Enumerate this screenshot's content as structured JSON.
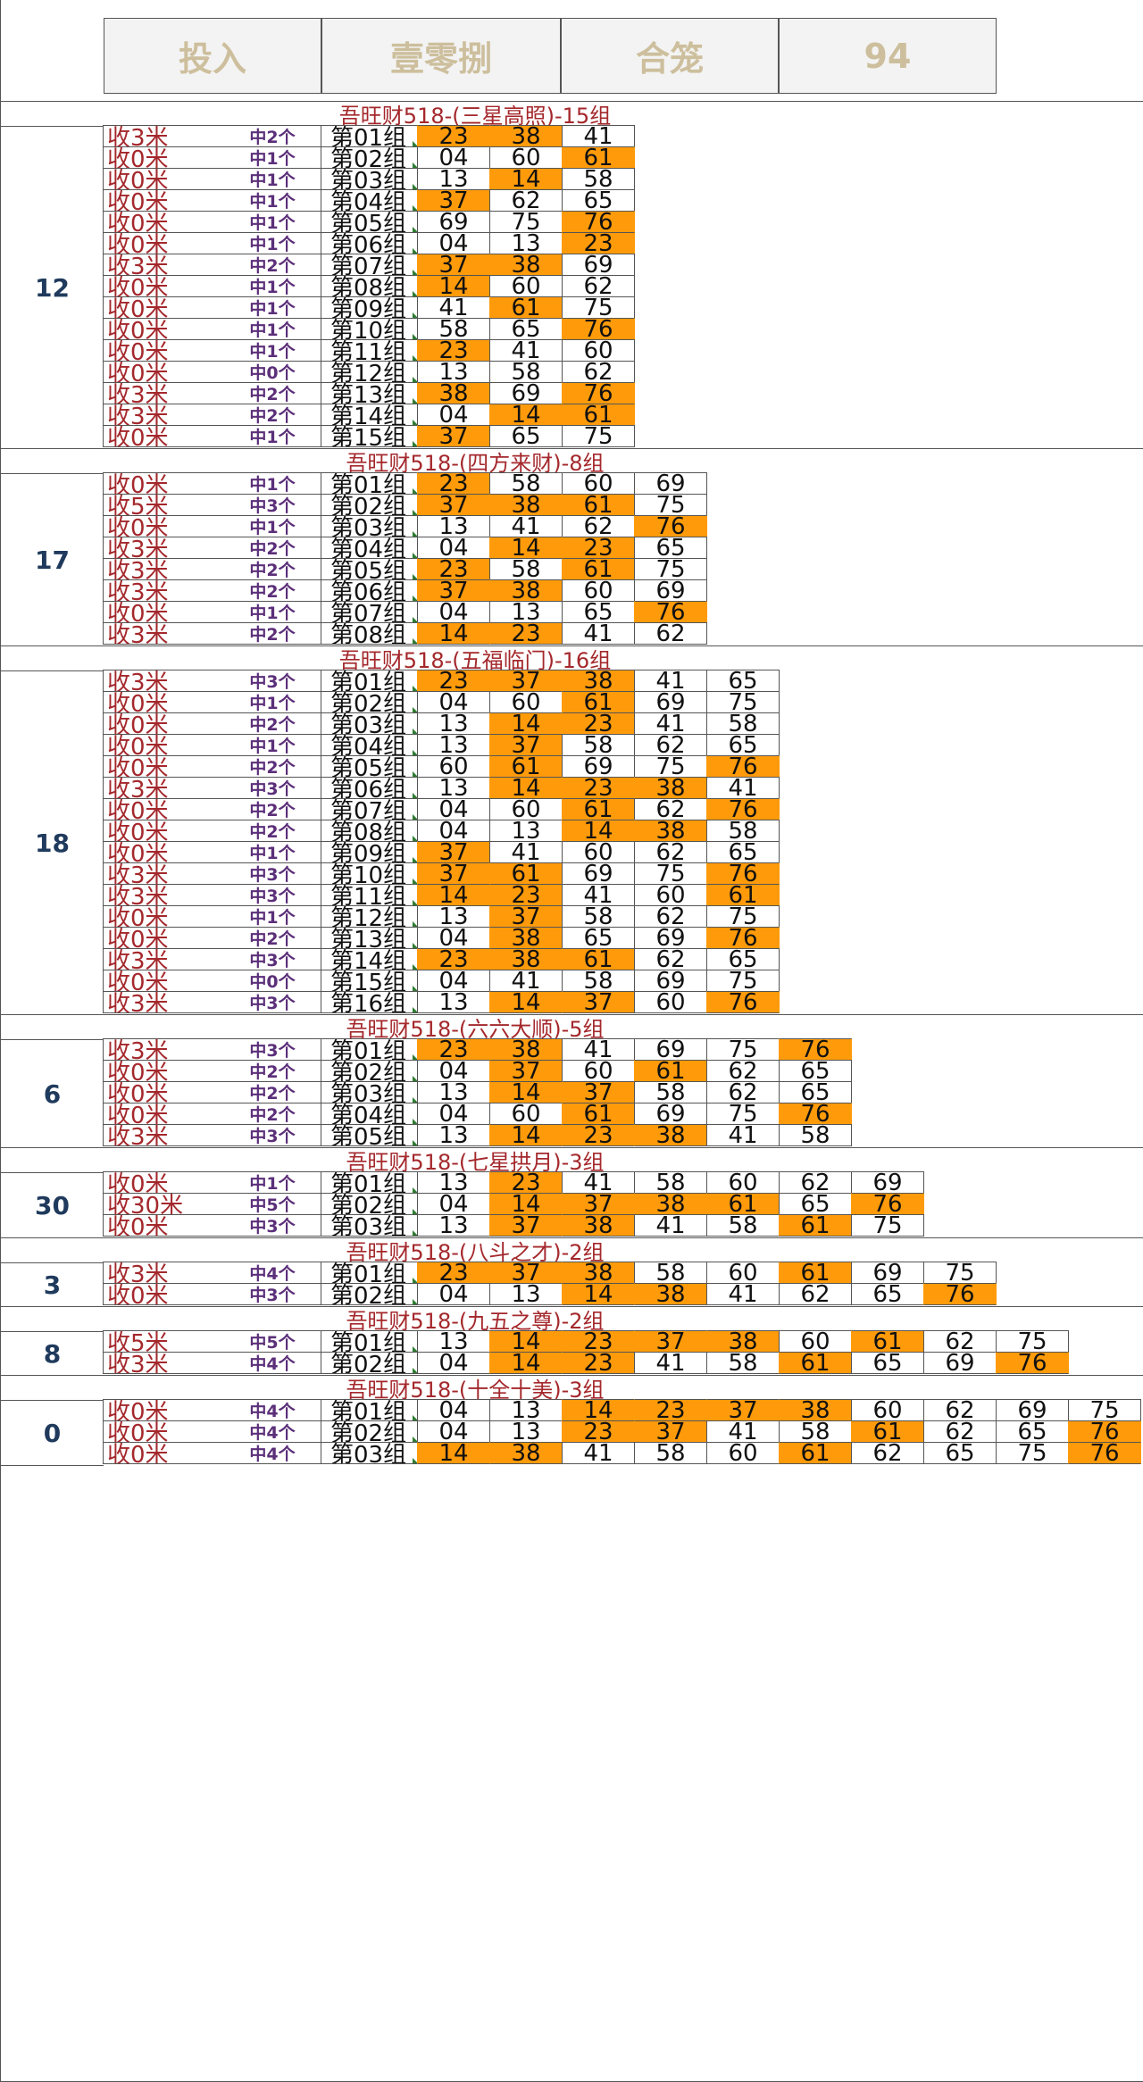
{
  "header": [
    "投入",
    "壹零捌",
    "合笼",
    "94"
  ],
  "sections": [
    {
      "title": "吾旺财518-(三星高照)-15组",
      "left_value": "12",
      "rows": [
        {
          "shou": "收3米",
          "zhong": "中2个",
          "group": "第01组",
          "nums": [
            "23",
            "38",
            "41"
          ],
          "hits": [
            true,
            true,
            false
          ]
        },
        {
          "shou": "收0米",
          "zhong": "中1个",
          "group": "第02组",
          "nums": [
            "04",
            "60",
            "61"
          ],
          "hits": [
            false,
            false,
            true
          ]
        },
        {
          "shou": "收0米",
          "zhong": "中1个",
          "group": "第03组",
          "nums": [
            "13",
            "14",
            "58"
          ],
          "hits": [
            false,
            true,
            false
          ]
        },
        {
          "shou": "收0米",
          "zhong": "中1个",
          "group": "第04组",
          "nums": [
            "37",
            "62",
            "65"
          ],
          "hits": [
            true,
            false,
            false
          ]
        },
        {
          "shou": "收0米",
          "zhong": "中1个",
          "group": "第05组",
          "nums": [
            "69",
            "75",
            "76"
          ],
          "hits": [
            false,
            false,
            true
          ]
        },
        {
          "shou": "收0米",
          "zhong": "中1个",
          "group": "第06组",
          "nums": [
            "04",
            "13",
            "23"
          ],
          "hits": [
            false,
            false,
            true
          ]
        },
        {
          "shou": "收3米",
          "zhong": "中2个",
          "group": "第07组",
          "nums": [
            "37",
            "38",
            "69"
          ],
          "hits": [
            true,
            true,
            false
          ]
        },
        {
          "shou": "收0米",
          "zhong": "中1个",
          "group": "第08组",
          "nums": [
            "14",
            "60",
            "62"
          ],
          "hits": [
            true,
            false,
            false
          ]
        },
        {
          "shou": "收0米",
          "zhong": "中1个",
          "group": "第09组",
          "nums": [
            "41",
            "61",
            "75"
          ],
          "hits": [
            false,
            true,
            false
          ]
        },
        {
          "shou": "收0米",
          "zhong": "中1个",
          "group": "第10组",
          "nums": [
            "58",
            "65",
            "76"
          ],
          "hits": [
            false,
            false,
            true
          ]
        },
        {
          "shou": "收0米",
          "zhong": "中1个",
          "group": "第11组",
          "nums": [
            "23",
            "41",
            "60"
          ],
          "hits": [
            true,
            false,
            false
          ]
        },
        {
          "shou": "收0米",
          "zhong": "中0个",
          "group": "第12组",
          "nums": [
            "13",
            "58",
            "62"
          ],
          "hits": [
            false,
            false,
            false
          ]
        },
        {
          "shou": "收3米",
          "zhong": "中2个",
          "group": "第13组",
          "nums": [
            "38",
            "69",
            "76"
          ],
          "hits": [
            true,
            false,
            true
          ]
        },
        {
          "shou": "收3米",
          "zhong": "中2个",
          "group": "第14组",
          "nums": [
            "04",
            "14",
            "61"
          ],
          "hits": [
            false,
            true,
            true
          ]
        },
        {
          "shou": "收0米",
          "zhong": "中1个",
          "group": "第15组",
          "nums": [
            "37",
            "65",
            "75"
          ],
          "hits": [
            true,
            false,
            false
          ]
        }
      ]
    },
    {
      "title": "吾旺财518-(四方来财)-8组",
      "left_value": "17",
      "rows": [
        {
          "shou": "收0米",
          "zhong": "中1个",
          "group": "第01组",
          "nums": [
            "23",
            "58",
            "60",
            "69"
          ],
          "hits": [
            true,
            false,
            false,
            false
          ]
        },
        {
          "shou": "收5米",
          "zhong": "中3个",
          "group": "第02组",
          "nums": [
            "37",
            "38",
            "61",
            "75"
          ],
          "hits": [
            true,
            true,
            true,
            false
          ]
        },
        {
          "shou": "收0米",
          "zhong": "中1个",
          "group": "第03组",
          "nums": [
            "13",
            "41",
            "62",
            "76"
          ],
          "hits": [
            false,
            false,
            false,
            true
          ]
        },
        {
          "shou": "收3米",
          "zhong": "中2个",
          "group": "第04组",
          "nums": [
            "04",
            "14",
            "23",
            "65"
          ],
          "hits": [
            false,
            true,
            true,
            false
          ]
        },
        {
          "shou": "收3米",
          "zhong": "中2个",
          "group": "第05组",
          "nums": [
            "23",
            "58",
            "61",
            "75"
          ],
          "hits": [
            true,
            false,
            true,
            false
          ]
        },
        {
          "shou": "收3米",
          "zhong": "中2个",
          "group": "第06组",
          "nums": [
            "37",
            "38",
            "60",
            "69"
          ],
          "hits": [
            true,
            true,
            false,
            false
          ]
        },
        {
          "shou": "收0米",
          "zhong": "中1个",
          "group": "第07组",
          "nums": [
            "04",
            "13",
            "65",
            "76"
          ],
          "hits": [
            false,
            false,
            false,
            true
          ]
        },
        {
          "shou": "收3米",
          "zhong": "中2个",
          "group": "第08组",
          "nums": [
            "14",
            "23",
            "41",
            "62"
          ],
          "hits": [
            true,
            true,
            false,
            false
          ]
        }
      ]
    },
    {
      "title": "吾旺财518-(五福临门)-16组",
      "left_value": "18",
      "rows": [
        {
          "shou": "收3米",
          "zhong": "中3个",
          "group": "第01组",
          "nums": [
            "23",
            "37",
            "38",
            "41",
            "65"
          ],
          "hits": [
            true,
            true,
            true,
            false,
            false
          ]
        },
        {
          "shou": "收0米",
          "zhong": "中1个",
          "group": "第02组",
          "nums": [
            "04",
            "60",
            "61",
            "69",
            "75"
          ],
          "hits": [
            false,
            false,
            true,
            false,
            false
          ]
        },
        {
          "shou": "收0米",
          "zhong": "中2个",
          "group": "第03组",
          "nums": [
            "13",
            "14",
            "23",
            "41",
            "58"
          ],
          "hits": [
            false,
            true,
            true,
            false,
            false
          ]
        },
        {
          "shou": "收0米",
          "zhong": "中1个",
          "group": "第04组",
          "nums": [
            "13",
            "37",
            "58",
            "62",
            "65"
          ],
          "hits": [
            false,
            true,
            false,
            false,
            false
          ]
        },
        {
          "shou": "收0米",
          "zhong": "中2个",
          "group": "第05组",
          "nums": [
            "60",
            "61",
            "69",
            "75",
            "76"
          ],
          "hits": [
            false,
            true,
            false,
            false,
            true
          ]
        },
        {
          "shou": "收3米",
          "zhong": "中3个",
          "group": "第06组",
          "nums": [
            "13",
            "14",
            "23",
            "38",
            "41"
          ],
          "hits": [
            false,
            true,
            true,
            true,
            false
          ]
        },
        {
          "shou": "收0米",
          "zhong": "中2个",
          "group": "第07组",
          "nums": [
            "04",
            "60",
            "61",
            "62",
            "76"
          ],
          "hits": [
            false,
            false,
            true,
            false,
            true
          ]
        },
        {
          "shou": "收0米",
          "zhong": "中2个",
          "group": "第08组",
          "nums": [
            "04",
            "13",
            "14",
            "38",
            "58"
          ],
          "hits": [
            false,
            false,
            true,
            true,
            false
          ]
        },
        {
          "shou": "收0米",
          "zhong": "中1个",
          "group": "第09组",
          "nums": [
            "37",
            "41",
            "60",
            "62",
            "65"
          ],
          "hits": [
            true,
            false,
            false,
            false,
            false
          ]
        },
        {
          "shou": "收3米",
          "zhong": "中3个",
          "group": "第10组",
          "nums": [
            "37",
            "61",
            "69",
            "75",
            "76"
          ],
          "hits": [
            true,
            true,
            false,
            false,
            true
          ]
        },
        {
          "shou": "收3米",
          "zhong": "中3个",
          "group": "第11组",
          "nums": [
            "14",
            "23",
            "41",
            "60",
            "61"
          ],
          "hits": [
            true,
            true,
            false,
            false,
            true
          ]
        },
        {
          "shou": "收0米",
          "zhong": "中1个",
          "group": "第12组",
          "nums": [
            "13",
            "37",
            "58",
            "62",
            "75"
          ],
          "hits": [
            false,
            true,
            false,
            false,
            false
          ]
        },
        {
          "shou": "收0米",
          "zhong": "中2个",
          "group": "第13组",
          "nums": [
            "04",
            "38",
            "65",
            "69",
            "76"
          ],
          "hits": [
            false,
            true,
            false,
            false,
            true
          ]
        },
        {
          "shou": "收3米",
          "zhong": "中3个",
          "group": "第14组",
          "nums": [
            "23",
            "38",
            "61",
            "62",
            "65"
          ],
          "hits": [
            true,
            true,
            true,
            false,
            false
          ]
        },
        {
          "shou": "收0米",
          "zhong": "中0个",
          "group": "第15组",
          "nums": [
            "04",
            "41",
            "58",
            "69",
            "75"
          ],
          "hits": [
            false,
            false,
            false,
            false,
            false
          ]
        },
        {
          "shou": "收3米",
          "zhong": "中3个",
          "group": "第16组",
          "nums": [
            "13",
            "14",
            "37",
            "60",
            "76"
          ],
          "hits": [
            false,
            true,
            true,
            false,
            true
          ]
        }
      ]
    },
    {
      "title": "吾旺财518-(六六大顺)-5组",
      "left_value": "6",
      "rows": [
        {
          "shou": "收3米",
          "zhong": "中3个",
          "group": "第01组",
          "nums": [
            "23",
            "38",
            "41",
            "69",
            "75",
            "76"
          ],
          "hits": [
            true,
            true,
            false,
            false,
            false,
            true
          ]
        },
        {
          "shou": "收0米",
          "zhong": "中2个",
          "group": "第02组",
          "nums": [
            "04",
            "37",
            "60",
            "61",
            "62",
            "65"
          ],
          "hits": [
            false,
            true,
            false,
            true,
            false,
            false
          ]
        },
        {
          "shou": "收0米",
          "zhong": "中2个",
          "group": "第03组",
          "nums": [
            "13",
            "14",
            "37",
            "58",
            "62",
            "65"
          ],
          "hits": [
            false,
            true,
            true,
            false,
            false,
            false
          ]
        },
        {
          "shou": "收0米",
          "zhong": "中2个",
          "group": "第04组",
          "nums": [
            "04",
            "60",
            "61",
            "69",
            "75",
            "76"
          ],
          "hits": [
            false,
            false,
            true,
            false,
            false,
            true
          ]
        },
        {
          "shou": "收3米",
          "zhong": "中3个",
          "group": "第05组",
          "nums": [
            "13",
            "14",
            "23",
            "38",
            "41",
            "58"
          ],
          "hits": [
            false,
            true,
            true,
            true,
            false,
            false
          ]
        }
      ]
    },
    {
      "title": "吾旺财518-(七星拱月)-3组",
      "left_value": "30",
      "rows": [
        {
          "shou": "收0米",
          "zhong": "中1个",
          "group": "第01组",
          "nums": [
            "13",
            "23",
            "41",
            "58",
            "60",
            "62",
            "69"
          ],
          "hits": [
            false,
            true,
            false,
            false,
            false,
            false,
            false
          ]
        },
        {
          "shou": "收30米",
          "zhong": "中5个",
          "group": "第02组",
          "nums": [
            "04",
            "14",
            "37",
            "38",
            "61",
            "65",
            "76"
          ],
          "hits": [
            false,
            true,
            true,
            true,
            true,
            false,
            true
          ]
        },
        {
          "shou": "收0米",
          "zhong": "中3个",
          "group": "第03组",
          "nums": [
            "13",
            "37",
            "38",
            "41",
            "58",
            "61",
            "75"
          ],
          "hits": [
            false,
            true,
            true,
            false,
            false,
            true,
            false
          ]
        }
      ]
    },
    {
      "title": "吾旺财518-(八斗之才)-2组",
      "left_value": "3",
      "rows": [
        {
          "shou": "收3米",
          "zhong": "中4个",
          "group": "第01组",
          "nums": [
            "23",
            "37",
            "38",
            "58",
            "60",
            "61",
            "69",
            "75"
          ],
          "hits": [
            true,
            true,
            true,
            false,
            false,
            true,
            false,
            false
          ]
        },
        {
          "shou": "收0米",
          "zhong": "中3个",
          "group": "第02组",
          "nums": [
            "04",
            "13",
            "14",
            "38",
            "41",
            "62",
            "65",
            "76"
          ],
          "hits": [
            false,
            false,
            true,
            true,
            false,
            false,
            false,
            true
          ]
        }
      ]
    },
    {
      "title": "吾旺财518-(九五之尊)-2组",
      "left_value": "8",
      "rows": [
        {
          "shou": "收5米",
          "zhong": "中5个",
          "group": "第01组",
          "nums": [
            "13",
            "14",
            "23",
            "37",
            "38",
            "60",
            "61",
            "62",
            "75"
          ],
          "hits": [
            false,
            true,
            true,
            true,
            true,
            false,
            true,
            false,
            false
          ]
        },
        {
          "shou": "收3米",
          "zhong": "中4个",
          "group": "第02组",
          "nums": [
            "04",
            "14",
            "23",
            "41",
            "58",
            "61",
            "65",
            "69",
            "76"
          ],
          "hits": [
            false,
            true,
            true,
            false,
            false,
            true,
            false,
            false,
            true
          ]
        }
      ]
    },
    {
      "title": "吾旺财518-(十全十美)-3组",
      "left_value": "0",
      "rows": [
        {
          "shou": "收0米",
          "zhong": "中4个",
          "group": "第01组",
          "nums": [
            "04",
            "13",
            "14",
            "23",
            "37",
            "38",
            "60",
            "62",
            "69",
            "75"
          ],
          "hits": [
            false,
            false,
            true,
            true,
            true,
            true,
            false,
            false,
            false,
            false
          ]
        },
        {
          "shou": "收0米",
          "zhong": "中4个",
          "group": "第02组",
          "nums": [
            "04",
            "13",
            "23",
            "37",
            "41",
            "58",
            "61",
            "62",
            "65",
            "76"
          ],
          "hits": [
            false,
            false,
            true,
            true,
            false,
            false,
            true,
            false,
            false,
            true
          ]
        },
        {
          "shou": "收0米",
          "zhong": "中4个",
          "group": "第03组",
          "nums": [
            "14",
            "38",
            "41",
            "58",
            "60",
            "61",
            "62",
            "65",
            "75",
            "76"
          ],
          "hits": [
            true,
            true,
            false,
            false,
            false,
            true,
            false,
            false,
            false,
            true
          ]
        }
      ]
    }
  ]
}
